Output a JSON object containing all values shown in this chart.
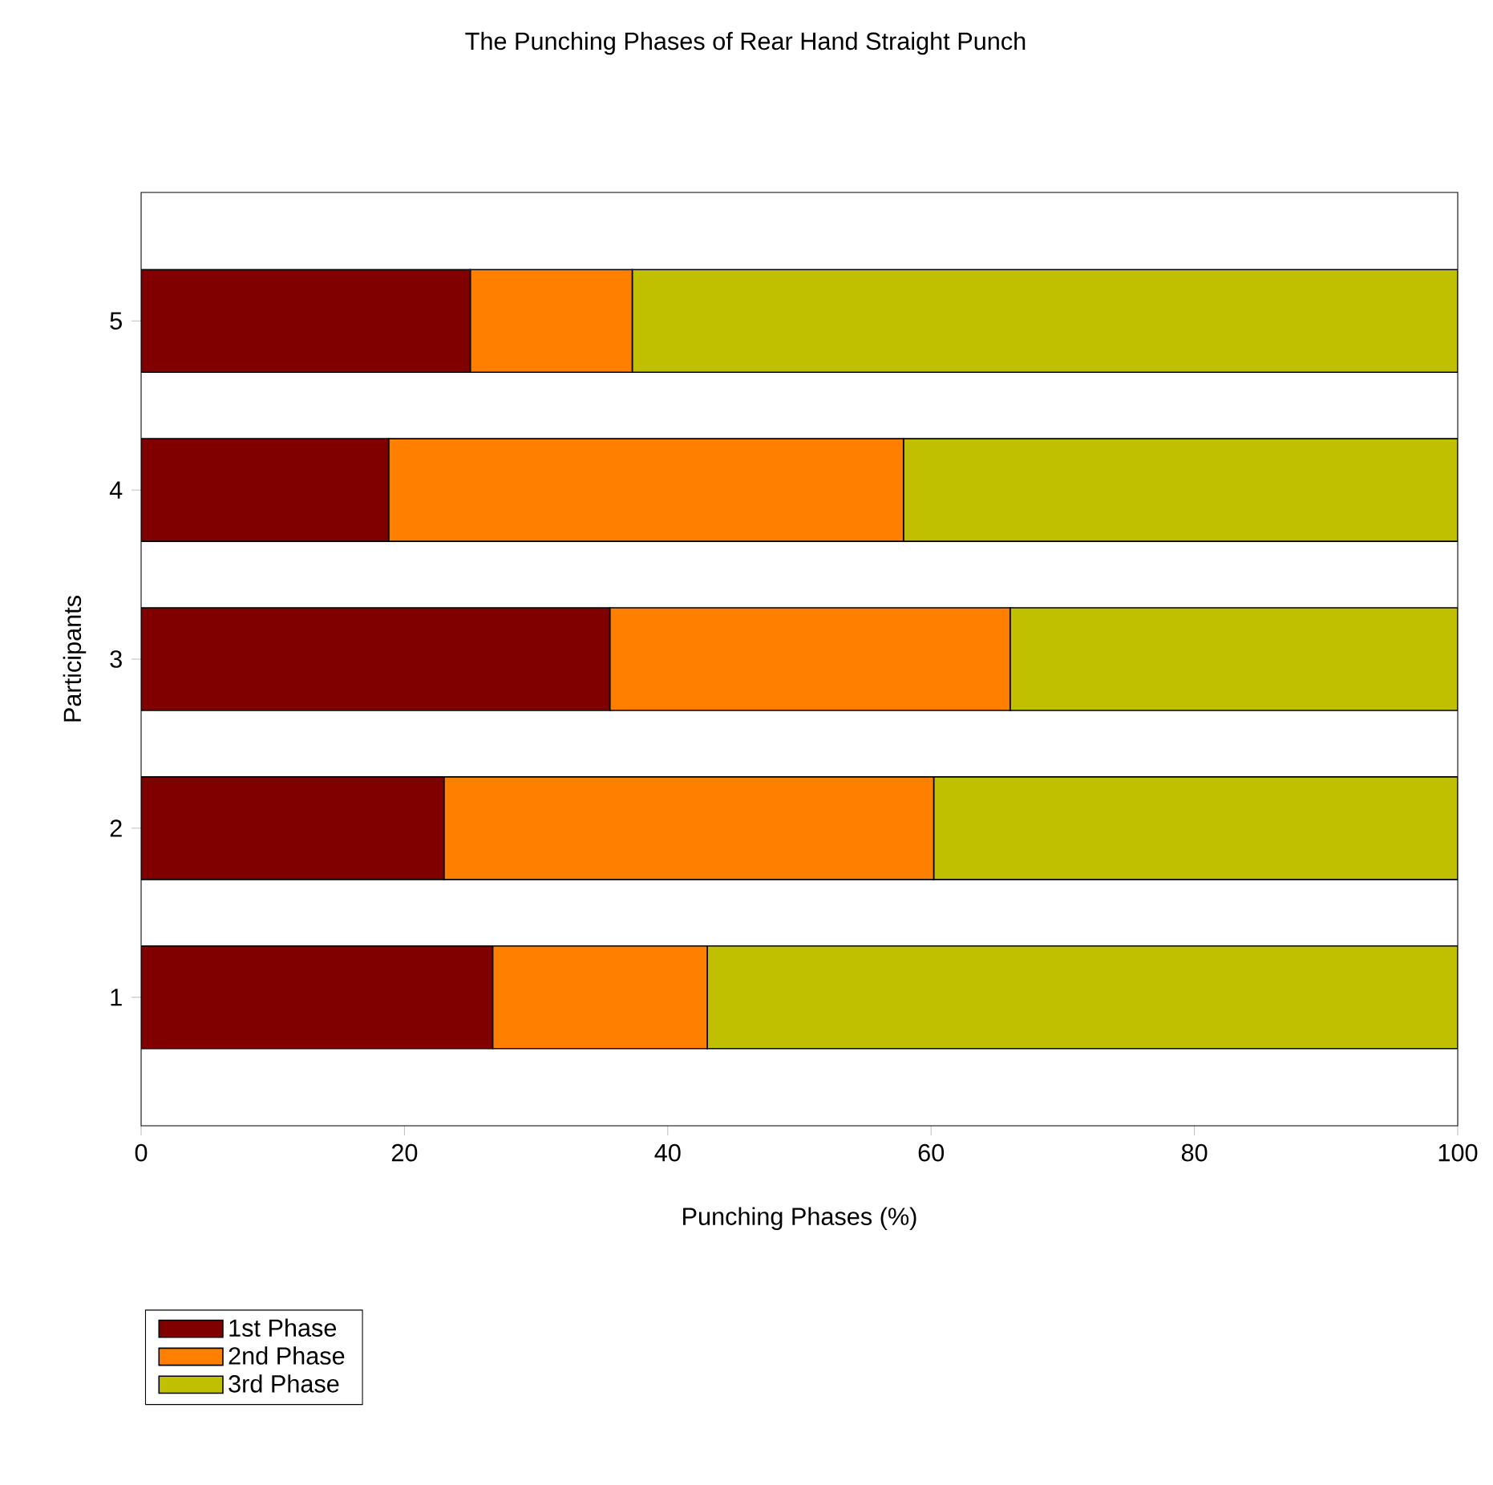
{
  "chart_data": {
    "type": "bar",
    "orientation": "horizontal",
    "stacked": true,
    "title": "The Punching Phases of Rear Hand Straight Punch",
    "xlabel": "Punching Phases (%)",
    "ylabel": "Participants",
    "categories": [
      "5",
      "4",
      "3",
      "2",
      "1"
    ],
    "series": [
      {
        "name": "1st Phase",
        "color": "#800000",
        "values": [
          25.0,
          18.8,
          35.6,
          23.0,
          26.7
        ]
      },
      {
        "name": "2nd Phase",
        "color": "#ff8000",
        "values": [
          12.3,
          39.1,
          30.4,
          37.2,
          16.3
        ]
      },
      {
        "name": "3rd Phase",
        "color": "#c0c000",
        "values": [
          62.7,
          42.1,
          34.0,
          39.8,
          57.0
        ]
      }
    ],
    "xlim": [
      0,
      100
    ],
    "xticks": [
      0,
      20,
      40,
      60,
      80,
      100
    ],
    "legend": "bottom left",
    "grid": false
  }
}
